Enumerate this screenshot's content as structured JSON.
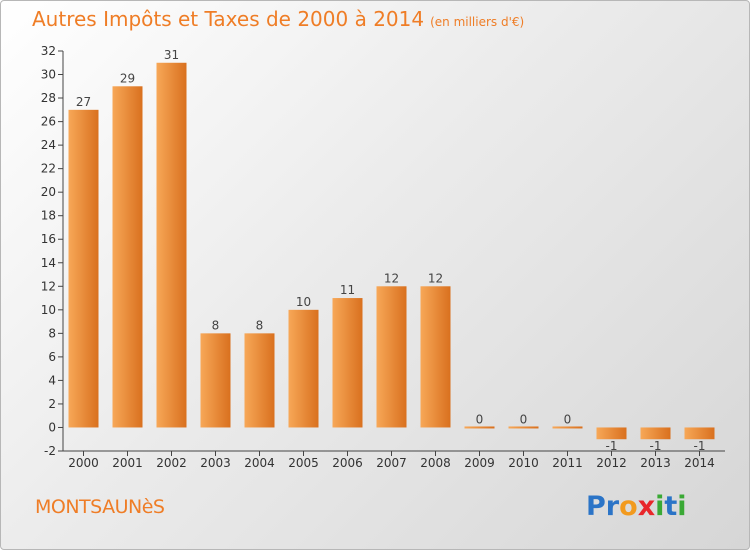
{
  "title": {
    "main": "Autres Impôts et Taxes de 2000 à 2014",
    "unit": "(en milliers d'€)"
  },
  "commune": "MONTSAUNèS",
  "logo": {
    "text": "Proxiti",
    "letters": [
      {
        "char": "P",
        "color": "#2b74c7"
      },
      {
        "char": "r",
        "color": "#2b74c7"
      },
      {
        "char": "o",
        "color": "#f29a1e"
      },
      {
        "char": "x",
        "color": "#e8262a"
      },
      {
        "char": "i",
        "color": "#3aa935"
      },
      {
        "char": "t",
        "color": "#2b74c7"
      },
      {
        "char": "i",
        "color": "#3aa935"
      }
    ]
  },
  "colors": {
    "title": "#ef7d26",
    "bar_light": "#f7a858",
    "bar_dark": "#d9701e"
  },
  "chart_data": {
    "type": "bar",
    "categories": [
      "2000",
      "2001",
      "2002",
      "2003",
      "2004",
      "2005",
      "2006",
      "2007",
      "2008",
      "2009",
      "2010",
      "2011",
      "2012",
      "2013",
      "2014"
    ],
    "values": [
      27,
      29,
      31,
      8,
      8,
      10,
      11,
      12,
      12,
      0,
      0,
      0,
      -1,
      -1,
      -1
    ],
    "value_labels": [
      "27",
      "29",
      "31",
      "8",
      "8",
      "10",
      "11",
      "12",
      "12",
      "0",
      "0",
      "0",
      "-1",
      "-1",
      "-1"
    ],
    "title": "Autres Impôts et Taxes de 2000 à 2014",
    "xlabel": "",
    "ylabel": "",
    "ylim": [
      -2,
      32
    ],
    "yticks": [
      -2,
      0,
      2,
      4,
      6,
      8,
      10,
      12,
      14,
      16,
      18,
      20,
      22,
      24,
      26,
      28,
      30,
      32
    ],
    "grid": false,
    "legend": "none"
  }
}
